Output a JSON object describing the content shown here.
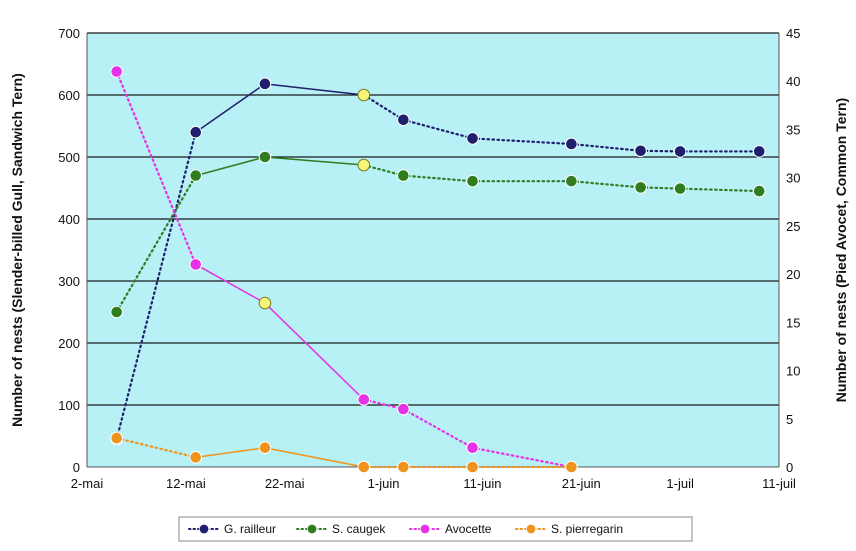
{
  "chart_data": {
    "type": "line",
    "title": "",
    "ylabel_left": "Number of nests (Slender-billed Gull, Sandwich Tern)",
    "ylabel_right": "Number of nests (Pied Avocet, Common Tern)",
    "x_ticks": [
      "2-mai",
      "12-mai",
      "22-mai",
      "1-juin",
      "11-juin",
      "21-juin",
      "1-juil",
      "11-juil"
    ],
    "y_left_ticks": [
      "0",
      "100",
      "200",
      "300",
      "400",
      "500",
      "600",
      "700"
    ],
    "y_right_ticks": [
      "0",
      "5",
      "10",
      "15",
      "20",
      "25",
      "30",
      "35",
      "40",
      "45"
    ],
    "y_left_range": [
      0,
      700
    ],
    "y_right_range": [
      0,
      45
    ],
    "x_range_days_from_2_mai": [
      0,
      70
    ],
    "grid": "horizontal",
    "legend_position": "bottom",
    "plot_background": "#b7f0f5",
    "series": [
      {
        "name": "G. railleur",
        "axis": "left",
        "color": "#1f1f6e",
        "points": [
          {
            "date": "5-mai",
            "value": 45
          },
          {
            "date": "13-mai",
            "value": 540
          },
          {
            "date": "20-mai",
            "value": 618
          },
          {
            "date": "30-mai",
            "value": 600
          },
          {
            "date": "3-juin",
            "value": 560
          },
          {
            "date": "10-juin",
            "value": 530
          },
          {
            "date": "20-juin",
            "value": 521
          },
          {
            "date": "27-juin",
            "value": 510
          },
          {
            "date": "1-juil",
            "value": 509
          },
          {
            "date": "9-juil",
            "value": 509
          }
        ],
        "segment_styles": [
          "dotted",
          "solid",
          "solid",
          "dotted",
          "dotted",
          "dotted",
          "dotted",
          "dotted",
          "dotted"
        ],
        "highlight_index": 3
      },
      {
        "name": "S. caugek",
        "axis": "left",
        "color": "#2f7d1f",
        "points": [
          {
            "date": "5-mai",
            "value": 250
          },
          {
            "date": "13-mai",
            "value": 470
          },
          {
            "date": "20-mai",
            "value": 500
          },
          {
            "date": "30-mai",
            "value": 487
          },
          {
            "date": "3-juin",
            "value": 470
          },
          {
            "date": "10-juin",
            "value": 461
          },
          {
            "date": "20-juin",
            "value": 461
          },
          {
            "date": "27-juin",
            "value": 451
          },
          {
            "date": "1-juil",
            "value": 449
          },
          {
            "date": "9-juil",
            "value": 445
          }
        ],
        "segment_styles": [
          "dotted",
          "solid",
          "solid",
          "dotted",
          "dotted",
          "dotted",
          "dotted",
          "dotted",
          "dotted"
        ],
        "highlight_index": 3
      },
      {
        "name": "Avocette",
        "axis": "right",
        "color": "#e632e6",
        "points": [
          {
            "date": "5-mai",
            "value": 41
          },
          {
            "date": "13-mai",
            "value": 21
          },
          {
            "date": "20-mai",
            "value": 17
          },
          {
            "date": "30-mai",
            "value": 7
          },
          {
            "date": "3-juin",
            "value": 6
          },
          {
            "date": "10-juin",
            "value": 2
          },
          {
            "date": "20-juin",
            "value": 0
          }
        ],
        "segment_styles": [
          "dotted",
          "solid",
          "solid",
          "dotted",
          "dotted",
          "dotted"
        ],
        "highlight_index": 2
      },
      {
        "name": "S. pierregarin",
        "axis": "right",
        "color": "#f0931c",
        "points": [
          {
            "date": "5-mai",
            "value": 3
          },
          {
            "date": "13-mai",
            "value": 1
          },
          {
            "date": "20-mai",
            "value": 2
          },
          {
            "date": "30-mai",
            "value": 0
          },
          {
            "date": "3-juin",
            "value": 0
          },
          {
            "date": "10-juin",
            "value": 0
          },
          {
            "date": "20-juin",
            "value": 0
          }
        ],
        "segment_styles": [
          "dotted",
          "solid",
          "solid",
          "dotted",
          "dotted",
          "dotted"
        ],
        "highlight_index": -1
      }
    ]
  }
}
